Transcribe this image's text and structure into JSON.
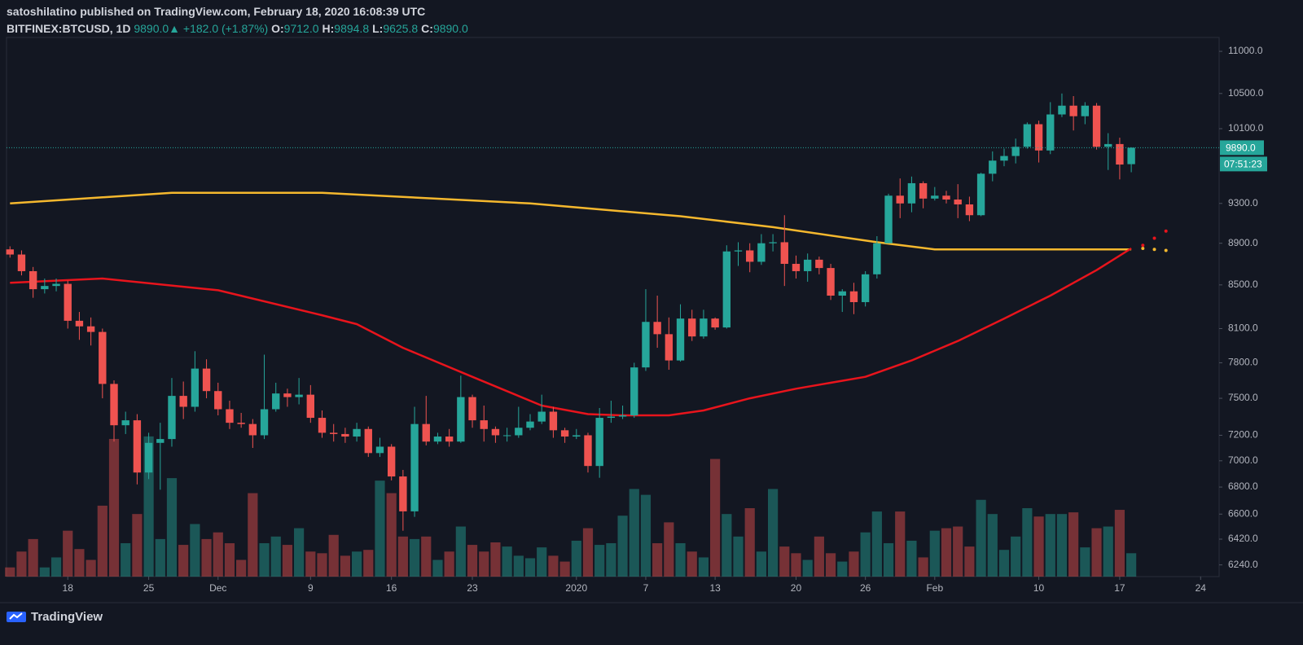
{
  "header": {
    "author_line": "satoshilatino published on TradingView.com, February 18, 2020 16:08:39 UTC",
    "symbol": "BITFINEX:BTCUSD, 1D",
    "last": "9890.0",
    "arrow": "▲",
    "change": "+182.0 (+1.87%)",
    "ohlc": [
      {
        "label": "O:",
        "value": "9712.0"
      },
      {
        "label": "H:",
        "value": "9894.8"
      },
      {
        "label": "L:",
        "value": "9625.8"
      },
      {
        "label": "C:",
        "value": "9890.0"
      }
    ]
  },
  "chart_data": {
    "type": "candlestick",
    "log": true,
    "grid": false,
    "up_color": "#26a69a",
    "down_color": "#ef5350",
    "xlim": [
      -0.3,
      104.6
    ],
    "xticks": [
      {
        "value": 5,
        "label": "18"
      },
      {
        "value": 12,
        "label": "25"
      },
      {
        "value": 18,
        "label": "Dec"
      },
      {
        "value": 26,
        "label": "9"
      },
      {
        "value": 33,
        "label": "16"
      },
      {
        "value": 40,
        "label": "23"
      },
      {
        "value": 49,
        "label": "2020"
      },
      {
        "value": 55,
        "label": "7"
      },
      {
        "value": 61,
        "label": "13"
      },
      {
        "value": 68,
        "label": "20"
      },
      {
        "value": 74,
        "label": "26"
      },
      {
        "value": 80,
        "label": "Feb"
      },
      {
        "value": 89,
        "label": "10"
      },
      {
        "value": 96,
        "label": "17"
      },
      {
        "value": 103,
        "label": "24"
      }
    ],
    "ylim": [
      6160,
      11170
    ],
    "yticks": [
      {
        "value": 11000,
        "label": "11000.0"
      },
      {
        "value": 10500,
        "label": "10500.0"
      },
      {
        "value": 10100,
        "label": "10100.0"
      },
      {
        "value": 9300,
        "label": "9300.0"
      },
      {
        "value": 8900,
        "label": "8900.0"
      },
      {
        "value": 8500,
        "label": "8500.0"
      },
      {
        "value": 8100,
        "label": "8100.0"
      },
      {
        "value": 7800,
        "label": "7800.0"
      },
      {
        "value": 7500,
        "label": "7500.0"
      },
      {
        "value": 7200,
        "label": "7200.0"
      },
      {
        "value": 7000,
        "label": "7000.0"
      },
      {
        "value": 6800,
        "label": "6800.0"
      },
      {
        "value": 6600,
        "label": "6600.0"
      },
      {
        "value": 6420,
        "label": "6420.0"
      },
      {
        "value": 6240,
        "label": "6240.0"
      }
    ],
    "open": [
      8840,
      8790,
      8630,
      8460,
      8490,
      8510,
      8170,
      8120,
      8070,
      7620,
      7280,
      7320,
      6910,
      7140,
      7170,
      7520,
      7430,
      7750,
      7560,
      7410,
      7300,
      7290,
      7200,
      7410,
      7540,
      7510,
      7530,
      7340,
      7220,
      7210,
      7190,
      7250,
      7060,
      7110,
      6880,
      6620,
      7290,
      7150,
      7190,
      7150,
      7510,
      7320,
      7250,
      7200,
      7200,
      7260,
      7310,
      7390,
      7240,
      7190,
      7200,
      6960,
      7340,
      7350,
      7360,
      7760,
      8160,
      8050,
      7820,
      8190,
      8030,
      8190,
      8110,
      8820,
      8830,
      8720,
      8900,
      8910,
      8700,
      8630,
      8740,
      8660,
      8400,
      8440,
      8340,
      8600,
      8900,
      9380,
      9300,
      9510,
      9350,
      9380,
      9340,
      9290,
      9180,
      9610,
      9750,
      9800,
      9900,
      10150,
      9860,
      10260,
      10360,
      10240,
      10360,
      9900,
      9930,
      9712
    ],
    "high": [
      8870,
      8830,
      8670,
      8560,
      8560,
      8540,
      8250,
      8200,
      8100,
      7650,
      7390,
      7370,
      7220,
      7300,
      7670,
      7640,
      7900,
      7830,
      7630,
      7480,
      7380,
      7330,
      7870,
      7630,
      7580,
      7670,
      7610,
      7400,
      7290,
      7260,
      7300,
      7270,
      7180,
      7130,
      6930,
      7430,
      7520,
      7220,
      7250,
      7690,
      7530,
      7440,
      7270,
      7260,
      7430,
      7370,
      7530,
      7430,
      7260,
      7250,
      7220,
      7420,
      7480,
      7440,
      7800,
      8460,
      8400,
      8200,
      8320,
      8270,
      8270,
      8200,
      8880,
      8910,
      8900,
      8990,
      8990,
      9180,
      8780,
      8800,
      8770,
      8700,
      8460,
      8520,
      8630,
      8970,
      9400,
      9560,
      9580,
      9530,
      9470,
      9430,
      9500,
      9370,
      9620,
      9850,
      9880,
      9990,
      10170,
      10190,
      10400,
      10500,
      10470,
      10400,
      10390,
      10050,
      10000,
      9894.8
    ],
    "low": [
      8760,
      8590,
      8380,
      8420,
      8440,
      8100,
      8000,
      7950,
      7500,
      7150,
      7210,
      6820,
      6860,
      6780,
      7110,
      7330,
      7390,
      7500,
      7360,
      7250,
      7260,
      7100,
      7170,
      7390,
      7430,
      7450,
      7300,
      7180,
      7150,
      7140,
      7150,
      7030,
      7030,
      6850,
      6480,
      6580,
      7120,
      7130,
      7110,
      7140,
      7260,
      7150,
      7140,
      7150,
      7180,
      7240,
      7290,
      7180,
      7140,
      7170,
      6910,
      6870,
      7300,
      7330,
      7340,
      7730,
      7930,
      7740,
      7810,
      7990,
      8010,
      8090,
      8100,
      8680,
      8620,
      8690,
      8820,
      8490,
      8560,
      8530,
      8600,
      8360,
      8250,
      8230,
      8300,
      8560,
      8900,
      9150,
      9210,
      9250,
      9330,
      9300,
      9150,
      9120,
      9170,
      9530,
      9690,
      9720,
      9880,
      9730,
      9820,
      10230,
      10080,
      10150,
      9870,
      9650,
      9550,
      9625.8
    ],
    "close": [
      8790,
      8630,
      8460,
      8490,
      8510,
      8170,
      8120,
      8070,
      7620,
      7280,
      7320,
      6910,
      7140,
      7170,
      7520,
      7430,
      7750,
      7560,
      7410,
      7300,
      7290,
      7200,
      7410,
      7540,
      7510,
      7530,
      7340,
      7220,
      7210,
      7190,
      7250,
      7060,
      7110,
      6880,
      6620,
      7290,
      7150,
      7190,
      7150,
      7510,
      7320,
      7250,
      7200,
      7200,
      7260,
      7310,
      7390,
      7240,
      7190,
      7200,
      6960,
      7340,
      7350,
      7360,
      7760,
      8160,
      8050,
      7820,
      8190,
      8030,
      8190,
      8110,
      8820,
      8830,
      8720,
      8900,
      8910,
      8700,
      8630,
      8740,
      8660,
      8400,
      8440,
      8340,
      8600,
      8900,
      9380,
      9300,
      9510,
      9350,
      9380,
      9340,
      9290,
      9180,
      9610,
      9750,
      9800,
      9900,
      10150,
      9860,
      10260,
      10360,
      10240,
      10360,
      9900,
      9930,
      9708,
      9890
    ],
    "volume": [
      11,
      30,
      45,
      11,
      23,
      55,
      33,
      20,
      85,
      165,
      40,
      75,
      168,
      45,
      118,
      38,
      63,
      45,
      53,
      40,
      20,
      100,
      40,
      48,
      38,
      58,
      30,
      28,
      50,
      25,
      30,
      32,
      115,
      100,
      48,
      45,
      48,
      20,
      30,
      60,
      38,
      30,
      41,
      36,
      25,
      22,
      35,
      25,
      18,
      43,
      58,
      38,
      40,
      73,
      105,
      98,
      40,
      65,
      40,
      30,
      23,
      141,
      75,
      48,
      82,
      30,
      105,
      36,
      28,
      20,
      48,
      28,
      18,
      30,
      53,
      78,
      40,
      78,
      43,
      23,
      55,
      58,
      60,
      36,
      92,
      75,
      32,
      48,
      82,
      72,
      75,
      75,
      77,
      35,
      58,
      60,
      80,
      28
    ],
    "lines": [
      {
        "color": "#f5b82e",
        "x": [
          0,
          14,
          27,
          45,
          58,
          66,
          75,
          80,
          97
        ],
        "values": [
          9300,
          9410,
          9410,
          9300,
          9170,
          9060,
          8910,
          8840,
          8840
        ],
        "projection_x": [
          98,
          99,
          100
        ],
        "projection": [
          8850,
          8840,
          8830
        ]
      },
      {
        "color": "#e8141c",
        "x": [
          0,
          8,
          18,
          27,
          30,
          34,
          40,
          46,
          50,
          53,
          57,
          60,
          64,
          68,
          74,
          78,
          82,
          86,
          90,
          94,
          97
        ],
        "values": [
          8520,
          8560,
          8450,
          8220,
          8140,
          7930,
          7680,
          7440,
          7370,
          7360,
          7360,
          7400,
          7500,
          7580,
          7680,
          7820,
          7990,
          8190,
          8400,
          8640,
          8850
        ],
        "projection_x": [
          98,
          99,
          100
        ],
        "projection": [
          8880,
          8950,
          9020
        ]
      }
    ],
    "last_price": 9890,
    "last_price_label": "9890.0",
    "countdown": "07:51:23"
  },
  "footer": {
    "brand": "TradingView"
  }
}
